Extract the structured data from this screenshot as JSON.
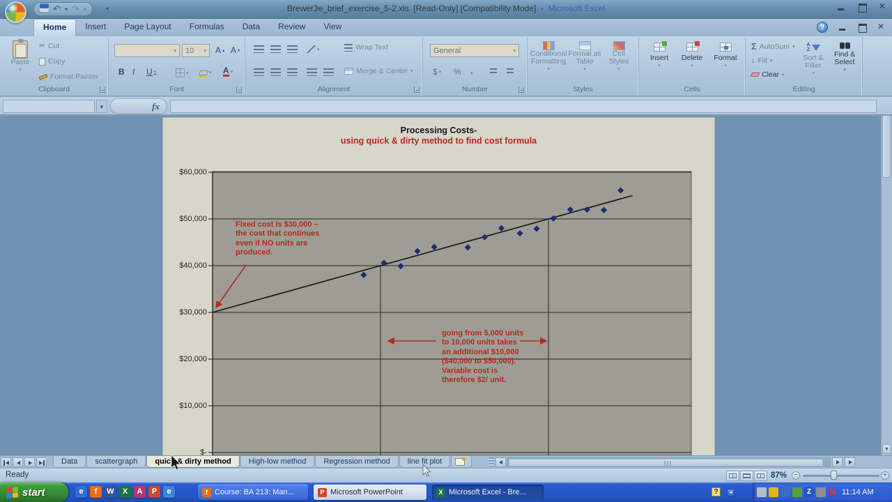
{
  "titlebar": {
    "document": "Brewer3e_brief_exercise_5-2.xls",
    "flags": "[Read-Only]  [Compatibility Mode]",
    "separator": "-",
    "app": "Microsoft Excel"
  },
  "ribbon_tabs": {
    "items": [
      "Home",
      "Insert",
      "Page Layout",
      "Formulas",
      "Data",
      "Review",
      "View"
    ],
    "active": "Home"
  },
  "ribbon": {
    "clipboard": {
      "label": "Clipboard",
      "paste": "Paste",
      "cut": "Cut",
      "copy": "Copy",
      "format_painter": "Format Painter"
    },
    "font": {
      "label": "Font",
      "size": "10",
      "bold": "B",
      "italic": "I",
      "underline": "U"
    },
    "alignment": {
      "label": "Alignment",
      "wrap_text": "Wrap Text",
      "merge_center": "Merge & Center"
    },
    "number": {
      "label": "Number",
      "format": "General",
      "currency": "$",
      "percent": "%",
      "comma": ","
    },
    "styles": {
      "label": "Styles",
      "conditional": "Conditional Formatting",
      "format_table": "Format as Table",
      "cell_styles": "Cell Styles"
    },
    "cells": {
      "label": "Cells",
      "insert": "Insert",
      "delete": "Delete",
      "format": "Format"
    },
    "editing": {
      "label": "Editing",
      "autosum": "AutoSum",
      "fill": "Fill",
      "clear": "Clear",
      "sort_filter": "Sort & Filter",
      "find_select": "Find & Select"
    }
  },
  "formula_bar": {
    "name_box": "",
    "fx": "fx"
  },
  "chart_data": {
    "type": "scatter",
    "title": "Processing Costs-",
    "subtitle": "using quick & dirty method to find cost formula",
    "ylim": [
      0,
      60000
    ],
    "grid": true,
    "y_ticks": [
      {
        "label": "$60,000",
        "value": 60000
      },
      {
        "label": "$50,000",
        "value": 50000
      },
      {
        "label": "$40,000",
        "value": 40000
      },
      {
        "label": "$30,000",
        "value": 30000
      },
      {
        "label": "$20,000",
        "value": 20000
      },
      {
        "label": "$10,000",
        "value": 10000
      },
      {
        "label": "$-",
        "value": 0
      }
    ],
    "points": [
      [
        4500,
        38000
      ],
      [
        5100,
        40600
      ],
      [
        5600,
        39900
      ],
      [
        6100,
        43100
      ],
      [
        6600,
        44000
      ],
      [
        7600,
        43900
      ],
      [
        8100,
        46100
      ],
      [
        8600,
        48000
      ],
      [
        9150,
        46900
      ],
      [
        9650,
        47900
      ],
      [
        10150,
        50100
      ],
      [
        10650,
        52000
      ],
      [
        11150,
        52000
      ],
      [
        11650,
        51900
      ],
      [
        12150,
        56100
      ]
    ],
    "trend_line": {
      "x1": 0,
      "y1": 30000,
      "x2": 12500,
      "y2": 55000,
      "intercept": 30000,
      "slope_per_unit": 2
    },
    "droplines": [
      {
        "x": 5000,
        "y": 40000
      },
      {
        "x": 10000,
        "y": 50000
      }
    ],
    "annotations": [
      {
        "lines": [
          "Fixed cost is $30,000 –",
          "the cost that continues",
          "even if NO units are",
          "produced."
        ],
        "color": "#b8281e"
      },
      {
        "lines": [
          "going from 5,000 units",
          "to 10,000 units takes",
          "an additional $10,000",
          "($40,000 to $50,000).",
          "Variable cost is",
          "therefore $2/ unit."
        ],
        "color": "#b8281e"
      }
    ]
  },
  "sheet_tabs": {
    "items": [
      {
        "label": "Data",
        "active": false
      },
      {
        "label": "scattergraph",
        "active": false
      },
      {
        "label": "quick & dirty method",
        "active": true
      },
      {
        "label": "High-low method",
        "active": false
      },
      {
        "label": "Regression method",
        "active": false
      },
      {
        "label": "line fit plot",
        "active": false
      }
    ]
  },
  "status_bar": {
    "mode": "Ready",
    "zoom": "87%"
  },
  "taskbar": {
    "start": "start",
    "quick_launch": [
      {
        "name": "internet-explorer-icon",
        "glyph": "e",
        "bg": "#2f6fd0"
      },
      {
        "name": "firefox-icon",
        "glyph": "f",
        "bg": "#e2701c"
      },
      {
        "name": "word-icon",
        "glyph": "W",
        "bg": "#2b579a"
      },
      {
        "name": "excel-icon",
        "glyph": "X",
        "bg": "#1e7145"
      },
      {
        "name": "access-icon",
        "glyph": "A",
        "bg": "#b03a6e"
      },
      {
        "name": "powerpoint-icon",
        "glyph": "P",
        "bg": "#cb4a28"
      },
      {
        "name": "browser-icon",
        "glyph": "e",
        "bg": "#3c86d8"
      }
    ],
    "buttons": [
      {
        "label": "Course: BA 213: Man...",
        "state": "normal",
        "icon_bg": "#e2701c",
        "icon_glyph": "f"
      },
      {
        "label": "Microsoft PowerPoint",
        "state": "lit",
        "icon_bg": "#cb4a28",
        "icon_glyph": "P"
      },
      {
        "label": "Microsoft Excel - Bre...",
        "state": "pressed",
        "icon_bg": "#1e7145",
        "icon_glyph": "X"
      }
    ],
    "tray": {
      "icons": [
        {
          "name": "messenger-icon",
          "bg": "#b9bec4",
          "glyph": ""
        },
        {
          "name": "update-shield-icon",
          "bg": "#e4b61a",
          "glyph": ""
        },
        {
          "name": "network-icon",
          "bg": "#3a6cc8",
          "glyph": ""
        },
        {
          "name": "antivirus-icon",
          "bg": "#55a433",
          "glyph": ""
        },
        {
          "name": "zone-icon",
          "bg": "#2a55b4",
          "glyph": "Z"
        },
        {
          "name": "volume-icon",
          "bg": "#8a9096",
          "glyph": ""
        },
        {
          "name": "netware-icon",
          "bg": "",
          "glyph": "N",
          "color": "#e83030"
        }
      ],
      "time": "11:14 AM"
    }
  },
  "colors": {
    "annotation_red": "#b8281e",
    "point_navy": "#1f2a70",
    "app_title_blue": "#2f6db4",
    "taskbar_blue": "#2a5ad0",
    "plot_gray": "#9d9d95",
    "chart_sheet": "#d6d6cb"
  }
}
